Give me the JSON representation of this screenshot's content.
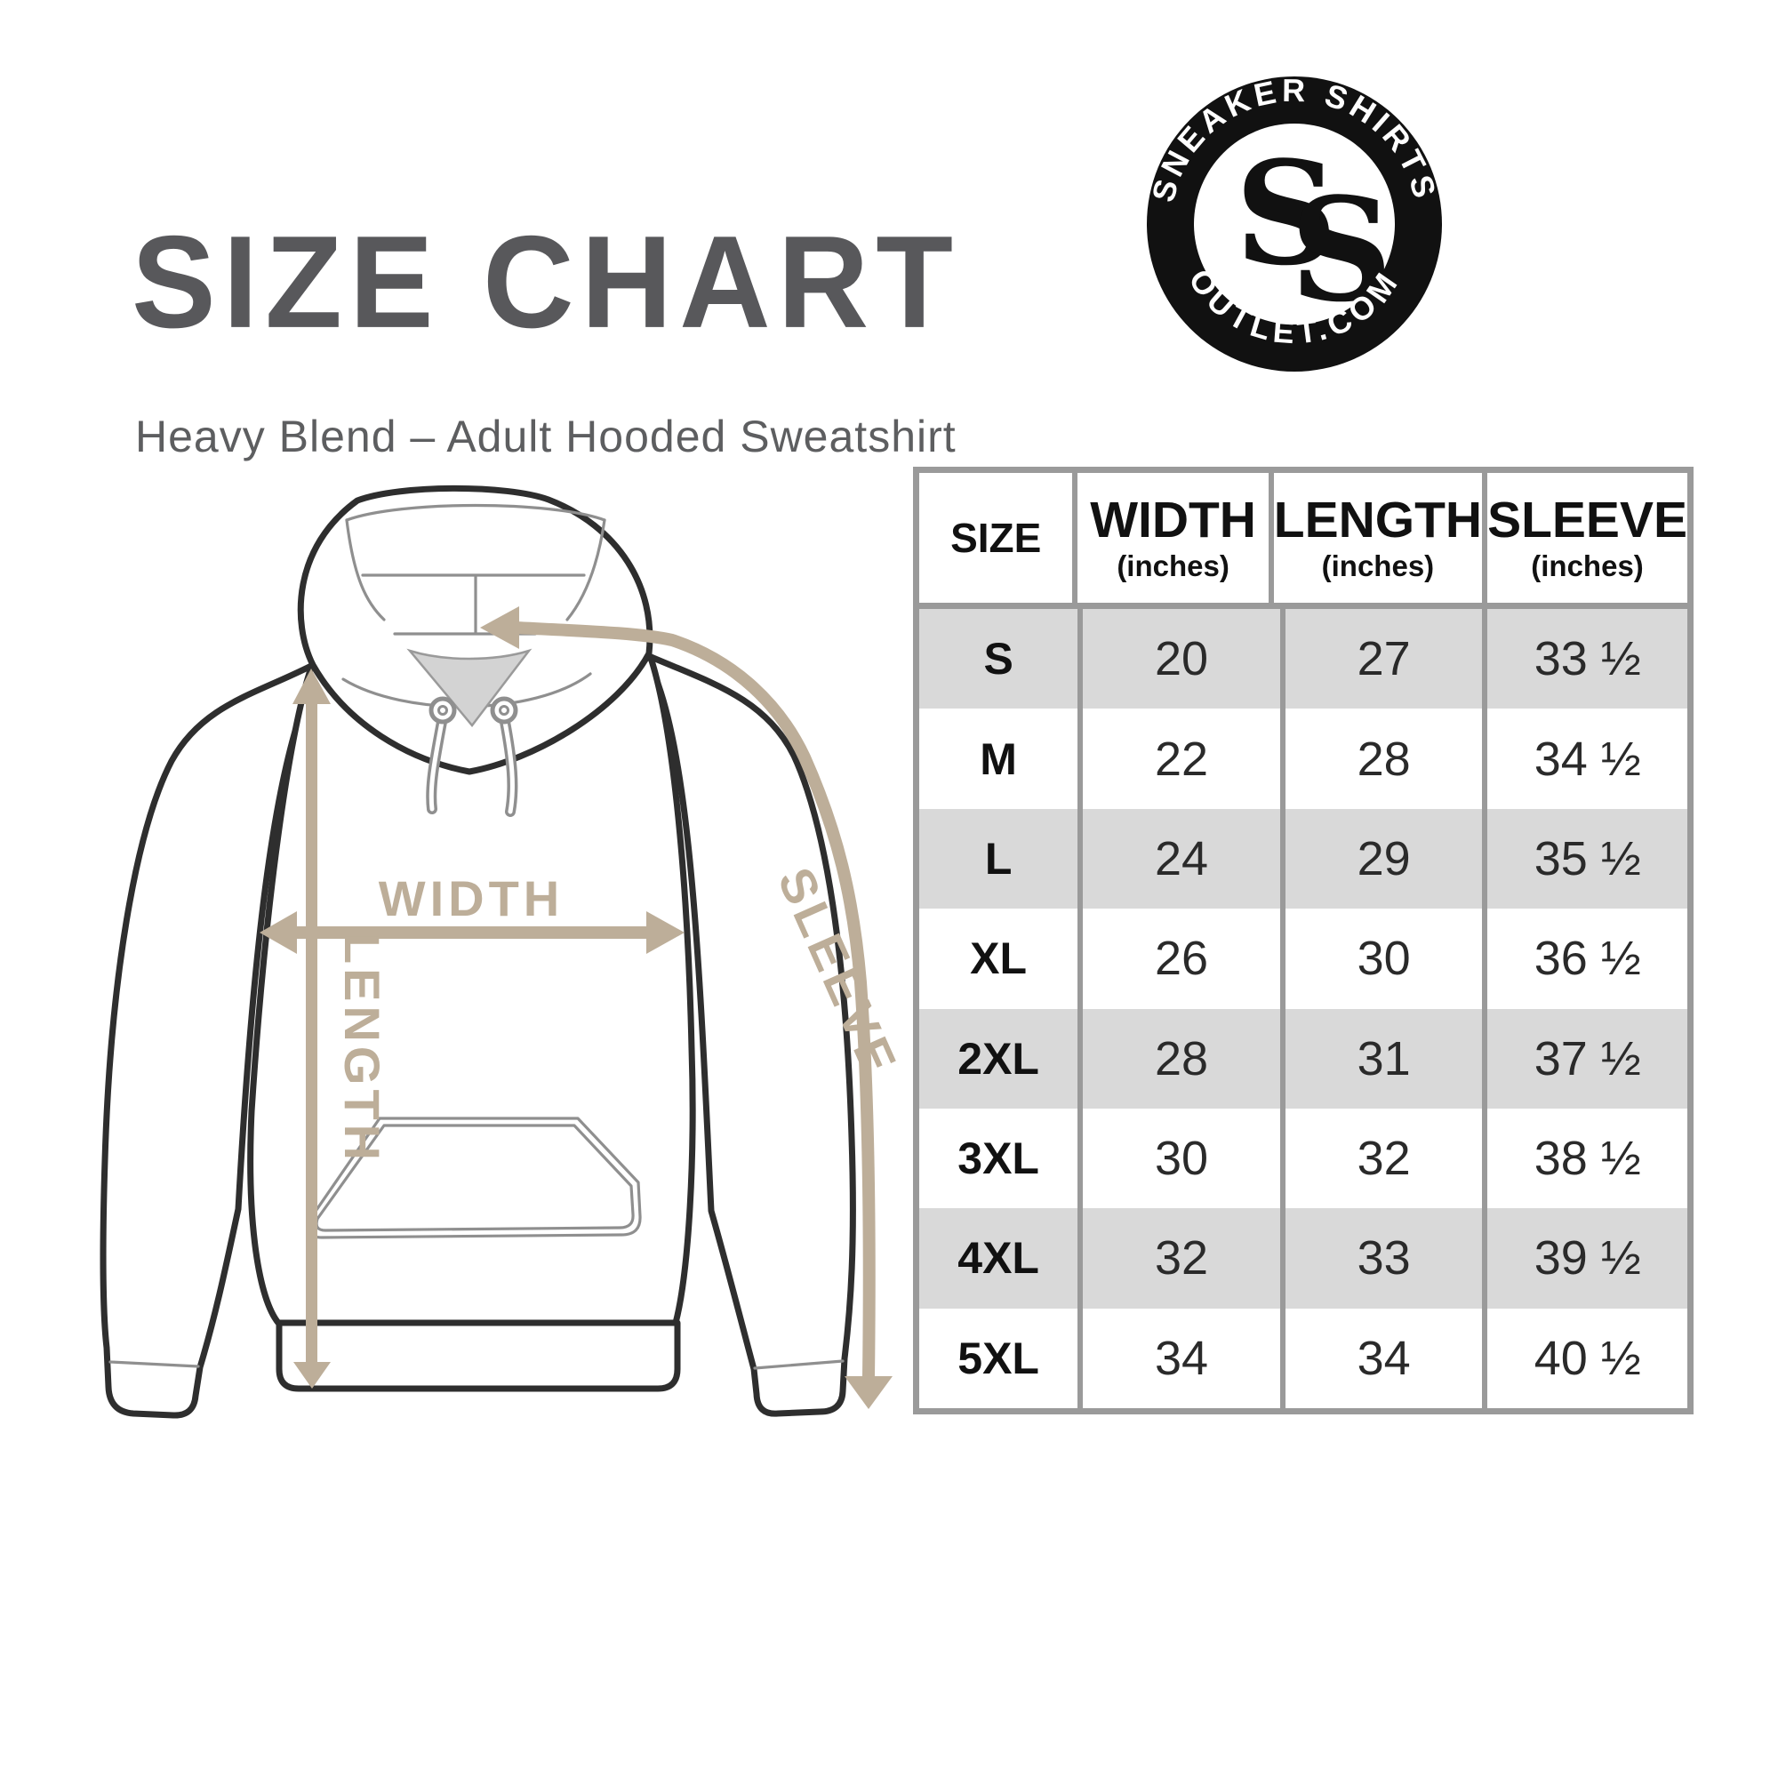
{
  "header": {
    "title": "SIZE CHART",
    "subtitle": "Heavy Blend – Adult Hooded Sweatshirt"
  },
  "logo": {
    "top_text": "SNEAKER SHIRTS",
    "bottom_text": "OUTLET.COM",
    "monogram_letter_1": "S",
    "monogram_letter_2": "S"
  },
  "diagram": {
    "width_label": "WIDTH",
    "length_label": "LENGTH",
    "sleeve_label": "SLEEVE"
  },
  "size_table": {
    "columns": [
      {
        "label": "SIZE",
        "unit": ""
      },
      {
        "label": "WIDTH",
        "unit": "(inches)"
      },
      {
        "label": "LENGTH",
        "unit": "(inches)"
      },
      {
        "label": "SLEEVE",
        "unit": "(inches)"
      }
    ],
    "rows": [
      {
        "size": "S",
        "width": "20",
        "length": "27",
        "sleeve": "33 ½"
      },
      {
        "size": "M",
        "width": "22",
        "length": "28",
        "sleeve": "34 ½"
      },
      {
        "size": "L",
        "width": "24",
        "length": "29",
        "sleeve": "35 ½"
      },
      {
        "size": "XL",
        "width": "26",
        "length": "30",
        "sleeve": "36 ½"
      },
      {
        "size": "2XL",
        "width": "28",
        "length": "31",
        "sleeve": "37 ½"
      },
      {
        "size": "3XL",
        "width": "30",
        "length": "32",
        "sleeve": "38 ½"
      },
      {
        "size": "4XL",
        "width": "32",
        "length": "33",
        "sleeve": "39 ½"
      },
      {
        "size": "5XL",
        "width": "34",
        "length": "34",
        "sleeve": "40 ½"
      }
    ]
  },
  "colors": {
    "accent_tan": "#bdae99",
    "table_border_gray": "#9a9a9a",
    "row_gray": "#d9d9d9",
    "outline_dark": "#2e2e2e",
    "outline_light": "#8f8f8f",
    "title_gray": "#58585b",
    "logo_black": "#111111"
  }
}
